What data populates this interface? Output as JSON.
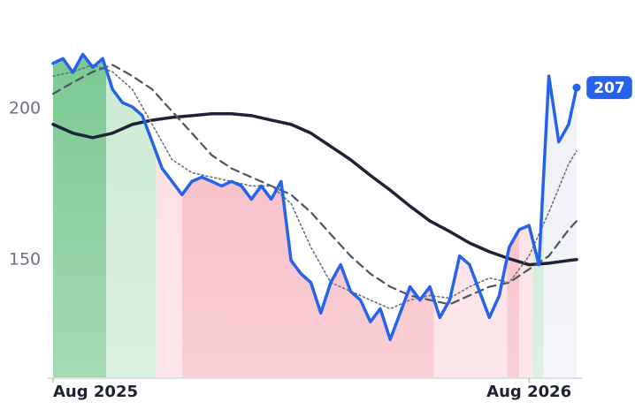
{
  "chart_data": {
    "type": "line",
    "xlim": [
      0,
      13.2
    ],
    "ylim": [
      111,
      236
    ],
    "yticks": [
      150,
      200
    ],
    "xticks": [
      {
        "value": 0,
        "label": "Aug 2025"
      },
      {
        "value": 12,
        "label": "Aug 2026"
      }
    ],
    "bands": [
      {
        "x0": 0,
        "x1": 1.34,
        "color": "#74c68c"
      },
      {
        "x0": 1.34,
        "x1": 2.6,
        "color": "#c8e9d1"
      },
      {
        "x0": 2.6,
        "x1": 3.25,
        "color": "#fcdbe0"
      },
      {
        "x0": 3.25,
        "x1": 9.6,
        "color": "#f7b5c0"
      },
      {
        "x0": 9.6,
        "x1": 11.45,
        "color": "#fcdbe0"
      },
      {
        "x0": 11.45,
        "x1": 11.75,
        "color": "#f7b5c0"
      },
      {
        "x0": 11.75,
        "x1": 12.1,
        "color": "#fcdbe0"
      },
      {
        "x0": 12.1,
        "x1": 12.37,
        "color": "#c8e9d1"
      },
      {
        "x0": 12.37,
        "x1": 13.2,
        "color": "#eef0f5"
      }
    ],
    "series": [
      {
        "color": "#1e2235",
        "style": "solid",
        "width": 3.5,
        "x": [
          0,
          0.5,
          1,
          1.5,
          2,
          2.5,
          3,
          3.5,
          4,
          4.5,
          5,
          5.5,
          6,
          6.5,
          7,
          7.5,
          8,
          8.5,
          9,
          9.5,
          10,
          10.5,
          11,
          11.5,
          12,
          12.5,
          13,
          13.2
        ],
        "values": [
          194.8,
          191.9,
          190.4,
          191.9,
          194.8,
          196.2,
          197.1,
          197.7,
          198.3,
          198.3,
          197.7,
          196.2,
          194.8,
          191.9,
          187.5,
          183.1,
          177.9,
          173,
          167.7,
          162.8,
          159.3,
          155.5,
          152.6,
          150.3,
          148.3,
          148.8,
          149.7,
          150
        ]
      },
      {
        "color": "#4b5563",
        "style": "dashed",
        "width": 2.2,
        "x": [
          0,
          0.5,
          1,
          1.5,
          2,
          2.5,
          3,
          3.5,
          4,
          4.5,
          5,
          5.5,
          6,
          6.5,
          7,
          7.5,
          8,
          8.5,
          9,
          9.5,
          10,
          10.5,
          11,
          11.5,
          12,
          12.5,
          13,
          13.2
        ],
        "values": [
          204.9,
          208.7,
          212.2,
          214.5,
          210.8,
          206.4,
          199.1,
          191.9,
          184.6,
          180.2,
          177.3,
          174.4,
          171.5,
          165.7,
          158.4,
          151.2,
          145.3,
          141,
          138.1,
          136.6,
          135.2,
          138.1,
          141,
          142.4,
          146.8,
          151.2,
          159.9,
          162.8
        ]
      },
      {
        "color": "#6b7280",
        "style": "dotted",
        "width": 1.6,
        "x": [
          0,
          0.5,
          1,
          1.5,
          2,
          2.5,
          3,
          3.5,
          4,
          4.5,
          5,
          5.5,
          6,
          6.5,
          7,
          7.5,
          8,
          8.5,
          9,
          9.5,
          10,
          10.5,
          11,
          11.5,
          12,
          12.5,
          13,
          13.2
        ],
        "values": [
          210.8,
          212.2,
          214.5,
          212.2,
          206.4,
          194.8,
          183.1,
          178.8,
          177.3,
          175.9,
          174.4,
          174.4,
          168.6,
          154.1,
          142.4,
          139.5,
          136.6,
          133.7,
          136.6,
          138.1,
          137.2,
          141,
          143.9,
          142.4,
          151.2,
          165.7,
          181.7,
          186
        ]
      },
      {
        "color": "#2563eb",
        "style": "solid",
        "width": 3.5,
        "price": true,
        "x": [
          0,
          0.25,
          0.5,
          0.75,
          1,
          1.25,
          1.5,
          1.75,
          2,
          2.25,
          2.5,
          2.75,
          3,
          3.25,
          3.5,
          3.75,
          4,
          4.25,
          4.5,
          4.75,
          5,
          5.25,
          5.5,
          5.75,
          6,
          6.25,
          6.5,
          6.75,
          7,
          7.25,
          7.5,
          7.75,
          8,
          8.25,
          8.5,
          8.75,
          9,
          9.25,
          9.5,
          9.75,
          10,
          10.25,
          10.5,
          10.75,
          11,
          11.25,
          11.5,
          11.75,
          12,
          12.25,
          12.5,
          12.75,
          13,
          13.2
        ],
        "values": [
          215,
          216.6,
          212,
          218,
          213.7,
          216.6,
          206.4,
          202,
          200.6,
          197.7,
          189,
          180.2,
          175.9,
          171.5,
          175.9,
          177.3,
          175.9,
          174.4,
          175.9,
          174.4,
          170,
          174.4,
          170,
          175.9,
          149.7,
          145.3,
          142.4,
          132.3,
          142.4,
          148.3,
          139.5,
          136.6,
          129.4,
          133.7,
          123.5,
          132.3,
          141,
          136.6,
          141,
          130.8,
          136.6,
          151.2,
          148.3,
          139.5,
          130.8,
          138.1,
          154.1,
          159.9,
          161.3,
          148.3,
          210.8,
          189,
          194.8,
          207
        ]
      }
    ]
  }
}
